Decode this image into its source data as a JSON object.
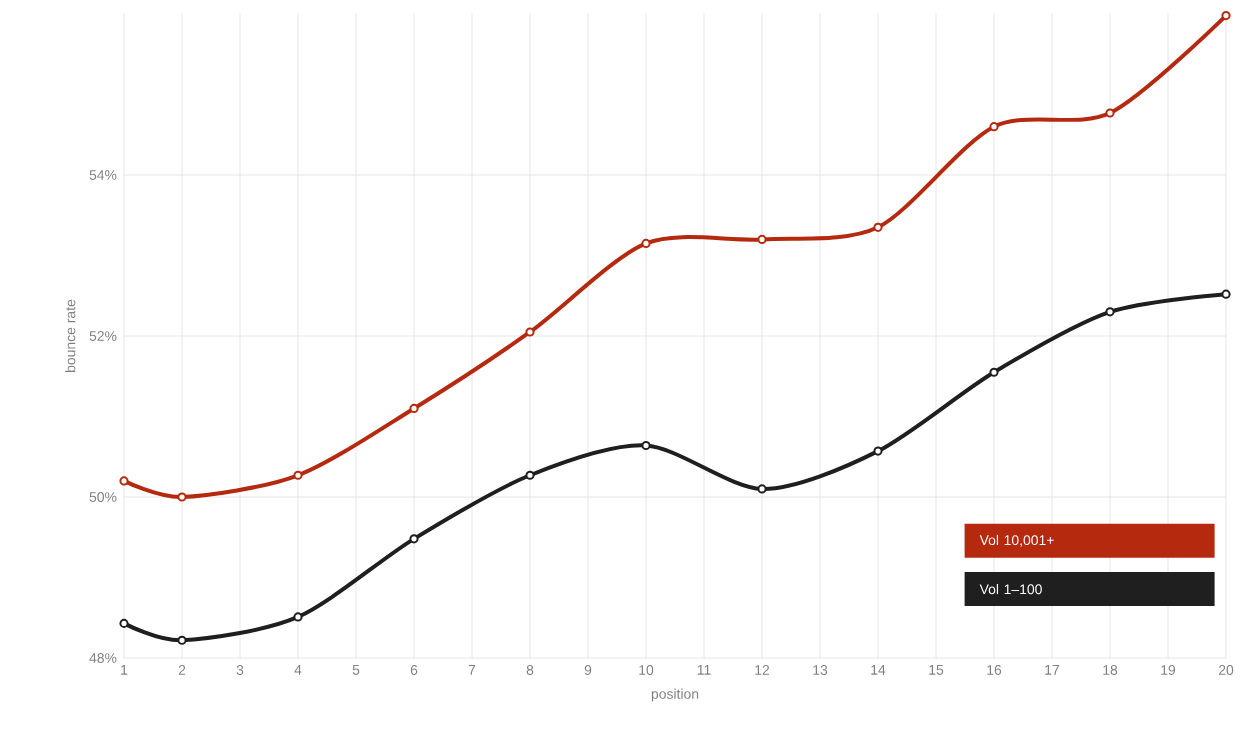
{
  "chart_data": {
    "type": "line",
    "xlabel": "position",
    "ylabel": "bounce rate",
    "xlim": [
      1,
      20
    ],
    "ylim": [
      48,
      56
    ],
    "xticks": [
      1,
      2,
      3,
      4,
      5,
      6,
      7,
      8,
      9,
      10,
      11,
      12,
      13,
      14,
      15,
      16,
      17,
      18,
      19,
      20
    ],
    "yticks": [
      {
        "value": 48,
        "label": "48%"
      },
      {
        "value": 50,
        "label": "50%"
      },
      {
        "value": 52,
        "label": "52%"
      },
      {
        "value": 54,
        "label": "54%"
      }
    ],
    "grid": true,
    "legend": "bottom right",
    "marker": "circle",
    "x": [
      1,
      2,
      4,
      6,
      8,
      10,
      12,
      14,
      16,
      18,
      20
    ],
    "series": [
      {
        "name": "Vol 10,001+",
        "color": "#b5290e",
        "values": [
          50.2,
          50.0,
          50.27,
          51.1,
          52.05,
          53.15,
          53.2,
          53.35,
          54.6,
          54.77,
          55.98
        ]
      },
      {
        "name": "Vol 1–100",
        "color": "#1f1f1f",
        "values": [
          48.43,
          48.22,
          48.51,
          49.48,
          50.27,
          50.64,
          50.1,
          50.57,
          51.55,
          52.3,
          52.52
        ]
      }
    ]
  }
}
